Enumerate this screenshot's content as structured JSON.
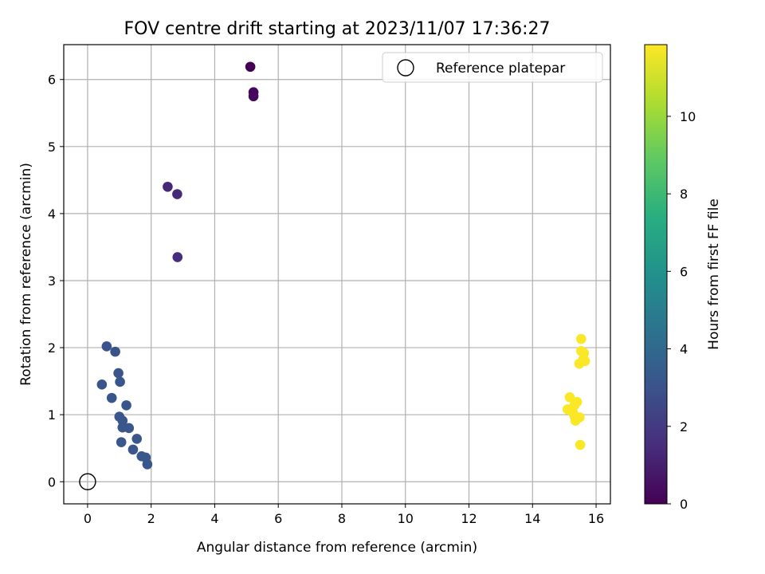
{
  "chart_data": {
    "type": "scatter",
    "title": "FOV centre drift starting at 2023/11/07 17:36:27",
    "xlabel": "Angular distance from reference (arcmin)",
    "ylabel": "Rotation from reference (arcmin)",
    "xlim": [
      -0.75,
      16.45
    ],
    "ylim": [
      -0.33,
      6.52
    ],
    "xticks": [
      0,
      2,
      4,
      6,
      8,
      10,
      12,
      14,
      16
    ],
    "yticks": [
      0,
      1,
      2,
      3,
      4,
      5,
      6
    ],
    "grid": true,
    "legend": {
      "position": "top-right",
      "entries": [
        "Reference platepar"
      ]
    },
    "reference_point": {
      "x": 0,
      "y": 0,
      "label": "Reference platepar"
    },
    "colorbar": {
      "label": "Hours from first FF file",
      "colormap": "viridis",
      "range": [
        0,
        11.85
      ],
      "ticks": [
        0,
        2,
        4,
        6,
        8,
        10
      ]
    },
    "points": [
      {
        "x": 5.12,
        "y": 6.19,
        "hours": 0.0
      },
      {
        "x": 5.22,
        "y": 5.81,
        "hours": 0.2
      },
      {
        "x": 5.22,
        "y": 5.75,
        "hours": 0.3
      },
      {
        "x": 2.52,
        "y": 4.4,
        "hours": 1.3
      },
      {
        "x": 2.82,
        "y": 4.29,
        "hours": 1.4
      },
      {
        "x": 2.83,
        "y": 3.35,
        "hours": 1.5
      },
      {
        "x": 0.6,
        "y": 2.02,
        "hours": 3.0
      },
      {
        "x": 0.87,
        "y": 1.94,
        "hours": 3.0
      },
      {
        "x": 0.97,
        "y": 1.62,
        "hours": 3.1
      },
      {
        "x": 1.02,
        "y": 1.49,
        "hours": 3.1
      },
      {
        "x": 0.45,
        "y": 1.45,
        "hours": 3.1
      },
      {
        "x": 0.76,
        "y": 1.25,
        "hours": 3.1
      },
      {
        "x": 1.22,
        "y": 1.14,
        "hours": 3.1
      },
      {
        "x": 1.0,
        "y": 0.97,
        "hours": 3.2
      },
      {
        "x": 1.1,
        "y": 0.91,
        "hours": 3.2
      },
      {
        "x": 1.1,
        "y": 0.81,
        "hours": 3.2
      },
      {
        "x": 1.3,
        "y": 0.8,
        "hours": 3.2
      },
      {
        "x": 1.55,
        "y": 0.64,
        "hours": 3.2
      },
      {
        "x": 1.06,
        "y": 0.59,
        "hours": 3.2
      },
      {
        "x": 1.43,
        "y": 0.48,
        "hours": 3.2
      },
      {
        "x": 1.7,
        "y": 0.38,
        "hours": 3.2
      },
      {
        "x": 1.83,
        "y": 0.36,
        "hours": 3.2
      },
      {
        "x": 1.88,
        "y": 0.26,
        "hours": 3.2
      },
      {
        "x": 15.53,
        "y": 2.13,
        "hours": 11.8
      },
      {
        "x": 15.53,
        "y": 1.95,
        "hours": 11.8
      },
      {
        "x": 15.62,
        "y": 1.92,
        "hours": 11.8
      },
      {
        "x": 15.6,
        "y": 1.83,
        "hours": 11.8
      },
      {
        "x": 15.65,
        "y": 1.8,
        "hours": 11.8
      },
      {
        "x": 15.47,
        "y": 1.76,
        "hours": 11.8
      },
      {
        "x": 15.17,
        "y": 1.26,
        "hours": 11.8
      },
      {
        "x": 15.4,
        "y": 1.19,
        "hours": 11.8
      },
      {
        "x": 15.32,
        "y": 1.14,
        "hours": 11.8
      },
      {
        "x": 15.1,
        "y": 1.08,
        "hours": 11.8
      },
      {
        "x": 15.27,
        "y": 1.03,
        "hours": 11.8
      },
      {
        "x": 15.32,
        "y": 0.98,
        "hours": 11.8
      },
      {
        "x": 15.48,
        "y": 0.96,
        "hours": 11.8
      },
      {
        "x": 15.35,
        "y": 0.91,
        "hours": 11.8
      },
      {
        "x": 15.5,
        "y": 0.55,
        "hours": 11.8
      }
    ]
  }
}
